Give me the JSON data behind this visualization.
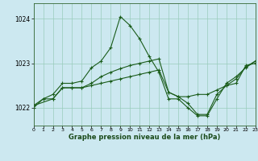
{
  "title": "Graphe pression niveau de la mer (hPa)",
  "background_color": "#cce8f0",
  "grid_color": "#99ccbb",
  "line_color": "#1a5c1a",
  "x_min": 0,
  "x_max": 23,
  "y_min": 1021.6,
  "y_max": 1024.35,
  "yticks": [
    1022,
    1023,
    1024
  ],
  "xticks": [
    0,
    1,
    2,
    3,
    4,
    5,
    6,
    7,
    8,
    9,
    10,
    11,
    12,
    13,
    14,
    15,
    16,
    17,
    18,
    19,
    20,
    21,
    22,
    23
  ],
  "series1_x": [
    0,
    1,
    2,
    3,
    4,
    5,
    6,
    7,
    8,
    9,
    10,
    11,
    12,
    13,
    14,
    15,
    16,
    17,
    18,
    19,
    20,
    21,
    22,
    23
  ],
  "series1_y": [
    1022.05,
    1022.2,
    1022.2,
    1022.45,
    1022.45,
    1022.45,
    1022.5,
    1022.55,
    1022.6,
    1022.65,
    1022.7,
    1022.75,
    1022.8,
    1022.85,
    1022.35,
    1022.25,
    1022.25,
    1022.3,
    1022.3,
    1022.4,
    1022.5,
    1022.55,
    1022.95,
    1023.0
  ],
  "series2_x": [
    0,
    2,
    3,
    4,
    5,
    6,
    7,
    8,
    9,
    10,
    11,
    12,
    13,
    14,
    15,
    16,
    17,
    18,
    19,
    20,
    21,
    22,
    23
  ],
  "series2_y": [
    1022.05,
    1022.2,
    1022.45,
    1022.45,
    1022.45,
    1022.55,
    1022.7,
    1022.8,
    1022.88,
    1022.95,
    1023.0,
    1023.05,
    1023.1,
    1022.35,
    1022.25,
    1022.1,
    1021.85,
    1021.85,
    1022.3,
    1022.5,
    1022.65,
    1022.92,
    1023.05
  ],
  "series3_x": [
    0,
    1,
    2,
    3,
    4,
    5,
    6,
    7,
    8,
    9,
    10,
    11,
    12,
    13,
    14,
    15,
    16,
    17,
    18,
    19,
    20,
    21,
    22,
    23
  ],
  "series3_y": [
    1022.0,
    1022.2,
    1022.3,
    1022.55,
    1022.55,
    1022.6,
    1022.9,
    1023.05,
    1023.35,
    1024.05,
    1023.85,
    1023.55,
    1023.15,
    1022.8,
    1022.2,
    1022.2,
    1022.0,
    1021.82,
    1021.82,
    1022.2,
    1022.55,
    1022.7,
    1022.9,
    1023.05
  ]
}
